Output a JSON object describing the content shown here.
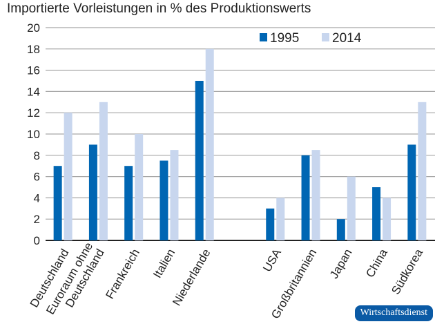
{
  "chart_data": {
    "type": "bar",
    "title": "Importierte Vorleistungen in % des Produktionswerts",
    "categories": [
      "Deutschland",
      "Euroraum ohne\nDeutschland",
      "Frankreich",
      "Italien",
      "Niederlande",
      "USA",
      "Großbritannien",
      "Japan",
      "China",
      "Südkorea"
    ],
    "series": [
      {
        "name": "1995",
        "color": "#0066b3",
        "values": [
          7,
          9,
          7,
          7.5,
          15,
          3,
          8,
          2,
          5,
          9
        ]
      },
      {
        "name": "2014",
        "color": "#c8d6ee",
        "values": [
          12,
          13,
          10,
          8.5,
          18,
          4,
          8.5,
          6,
          4,
          13
        ]
      }
    ],
    "ylim": [
      0,
      20
    ],
    "yticks": [
      0,
      2,
      4,
      6,
      8,
      10,
      12,
      14,
      16,
      18,
      20
    ],
    "grid": true,
    "legend": "top-right"
  },
  "badge": "Wirtschaftsdienst"
}
